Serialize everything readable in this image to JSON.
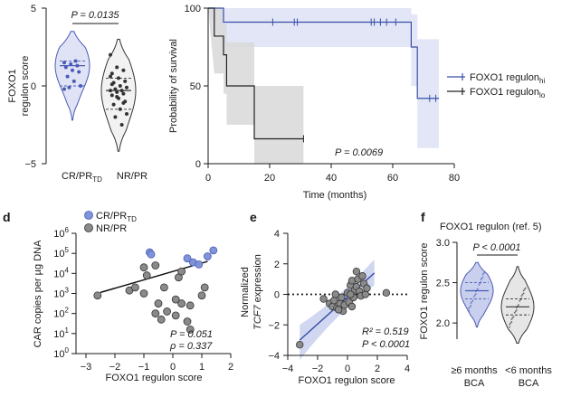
{
  "chart_data": [
    {
      "id": "violin_top",
      "type": "violin",
      "ylabel_lines": [
        "FOXO1",
        "regulon score"
      ],
      "ylim": [
        -5,
        5
      ],
      "yticks": [
        5,
        0,
        -5
      ],
      "categories": [
        "CR/PR",
        "NR/PR"
      ],
      "cat_subscripts": [
        "TD",
        ""
      ],
      "pvalue": "P = 0.0135",
      "colors": [
        "#4a5bb5",
        "#333333"
      ],
      "groups": [
        {
          "name": "CR/PR",
          "median": 1.3,
          "q1": 0.0,
          "q3": 1.6,
          "min": -2.2,
          "max": 3.5,
          "points": [
            1.5,
            1.4,
            1.3,
            1.2,
            1.0,
            0.9,
            0.6,
            0.3,
            0.0,
            -0.1,
            1.6,
            -0.2
          ]
        },
        {
          "name": "NR/PR",
          "median": -0.3,
          "q1": -1.5,
          "q3": 0.5,
          "min": -4.2,
          "max": 3.0,
          "points": [
            2.0,
            1.2,
            1.0,
            0.8,
            0.5,
            0.3,
            0.2,
            0.0,
            -0.1,
            -0.2,
            -0.3,
            -0.3,
            -0.4,
            -0.5,
            -0.6,
            -0.8,
            -1.0,
            -1.2,
            -1.5,
            -1.8,
            -2.0,
            -2.5,
            0.6,
            -0.7,
            -1.1,
            0.1
          ]
        }
      ]
    },
    {
      "id": "survival",
      "type": "line",
      "ylabel": "Probability of survival",
      "xlabel": "Time (months)",
      "xlim": [
        0,
        80
      ],
      "ylim": [
        0,
        100
      ],
      "xticks": [
        0,
        20,
        40,
        60,
        80
      ],
      "yticks": [
        0,
        50,
        100
      ],
      "pvalue": "P = 0.0069",
      "legend_position": "right",
      "series": [
        {
          "name_main": "FOXO1 regulon",
          "name_sub": "hi",
          "color": "#3a4fa8",
          "band_color": "#dfe3f5",
          "steps": [
            [
              0,
              100
            ],
            [
              5,
              100
            ],
            [
              5,
              91
            ],
            [
              66,
              91
            ],
            [
              66,
              75
            ],
            [
              68,
              75
            ],
            [
              68,
              42
            ],
            [
              75,
              42
            ]
          ],
          "band_lower": [
            [
              0,
              100
            ],
            [
              5,
              75
            ],
            [
              66,
              75
            ],
            [
              66,
              50
            ],
            [
              68,
              50
            ],
            [
              68,
              10
            ],
            [
              75,
              10
            ]
          ],
          "band_upper": [
            [
              0,
              100
            ],
            [
              5,
              100
            ],
            [
              66,
              100
            ],
            [
              66,
              96
            ],
            [
              68,
              96
            ],
            [
              68,
              80
            ],
            [
              75,
              80
            ]
          ],
          "censors": [
            [
              21,
              91
            ],
            [
              28,
              91
            ],
            [
              29,
              91
            ],
            [
              53,
              91
            ],
            [
              54,
              91
            ],
            [
              56,
              91
            ],
            [
              58,
              91
            ],
            [
              61,
              91
            ],
            [
              72,
              42
            ],
            [
              74,
              42
            ]
          ]
        },
        {
          "name_main": "FOXO1 regulon",
          "name_sub": "lo",
          "color": "#222222",
          "band_color": "#d8d8d8",
          "steps": [
            [
              0,
              100
            ],
            [
              2,
              100
            ],
            [
              2,
              82
            ],
            [
              5,
              82
            ],
            [
              5,
              70
            ],
            [
              6,
              70
            ],
            [
              6,
              50
            ],
            [
              15,
              50
            ],
            [
              15,
              16
            ],
            [
              31,
              16
            ]
          ],
          "band_lower": [
            [
              0,
              100
            ],
            [
              2,
              58
            ],
            [
              5,
              58
            ],
            [
              5,
              45
            ],
            [
              6,
              45
            ],
            [
              6,
              25
            ],
            [
              15,
              25
            ],
            [
              15,
              0
            ],
            [
              31,
              0
            ]
          ],
          "band_upper": [
            [
              0,
              100
            ],
            [
              2,
              100
            ],
            [
              5,
              100
            ],
            [
              5,
              90
            ],
            [
              6,
              90
            ],
            [
              6,
              78
            ],
            [
              15,
              78
            ],
            [
              15,
              50
            ],
            [
              31,
              50
            ]
          ],
          "censors": [
            [
              31,
              16
            ]
          ]
        }
      ]
    },
    {
      "id": "d",
      "type": "scatter",
      "panel_letter": "d",
      "ylabel": "CAR copies per µg DNA",
      "xlabel": "FOXO1 regulon score",
      "xlim": [
        -3,
        2
      ],
      "ylim_log10": [
        0,
        6
      ],
      "xticks": [
        -3,
        -2,
        -1,
        0,
        1,
        2
      ],
      "ytick_exps": [
        0,
        1,
        2,
        3,
        4,
        5,
        6
      ],
      "stats": [
        "P = 0.051",
        "ρ = 0.337"
      ],
      "legend": [
        {
          "label": "CR/PR",
          "sub": "TD",
          "color": "#7f94d8"
        },
        {
          "label": "NR/PR",
          "sub": "",
          "color": "#8a8a8a"
        }
      ],
      "fit": {
        "x": [
          -2.5,
          1.2
        ],
        "log10y": [
          3.05,
          4.6
        ]
      },
      "groups": [
        {
          "name": "CR/PR",
          "color": "#7f94d8",
          "points": [
            [
              1.4,
              5.15
            ],
            [
              1.2,
              4.85
            ],
            [
              0.7,
              4.55
            ],
            [
              0.9,
              4.45
            ],
            [
              -0.8,
              5.05
            ],
            [
              -0.75,
              4.95
            ],
            [
              0.5,
              4.75
            ]
          ]
        },
        {
          "name": "NR/PR",
          "color": "#8a8a8a",
          "points": [
            [
              -2.6,
              2.9
            ],
            [
              -1.5,
              3.15
            ],
            [
              -1.3,
              3.3
            ],
            [
              -1.0,
              3.0
            ],
            [
              -1.0,
              4.3
            ],
            [
              -0.6,
              4.4
            ],
            [
              -0.3,
              3.3
            ],
            [
              0.1,
              2.7
            ],
            [
              0.2,
              3.8
            ],
            [
              -0.5,
              2.5
            ],
            [
              0.3,
              2.5
            ],
            [
              0.6,
              2.4
            ],
            [
              0.5,
              1.6
            ],
            [
              0.6,
              1.2
            ],
            [
              0.1,
              1.9
            ],
            [
              -0.6,
              2.0
            ],
            [
              -0.4,
              1.7
            ],
            [
              -0.2,
              2.1
            ],
            [
              -0.9,
              3.9
            ],
            [
              1.0,
              2.9
            ],
            [
              1.1,
              3.3
            ],
            [
              0.3,
              4.1
            ]
          ]
        }
      ]
    },
    {
      "id": "e",
      "type": "scatter",
      "panel_letter": "e",
      "ylabel_lines": [
        "Normalized",
        "TCF7 expression"
      ],
      "ylabel_italic_word": "TCF7",
      "xlabel": "FOXO1 regulon score",
      "xlim": [
        -4,
        4
      ],
      "ylim": [
        -4,
        4
      ],
      "xticks": [
        -4,
        -2,
        0,
        2,
        4
      ],
      "yticks": [
        -4,
        -2,
        0,
        2,
        4
      ],
      "stats": [
        "R² = 0.519",
        "P < 0.0001"
      ],
      "fit": {
        "x": [
          -3.2,
          1.8
        ],
        "y": [
          -3.0,
          1.4
        ]
      },
      "points": [
        [
          -3.2,
          -3.3
        ],
        [
          -1.6,
          -0.3
        ],
        [
          -1.2,
          -0.6
        ],
        [
          -1.0,
          -0.8
        ],
        [
          -0.9,
          -0.4
        ],
        [
          -0.7,
          -0.9
        ],
        [
          -0.5,
          -0.6
        ],
        [
          -0.4,
          -0.2
        ],
        [
          -0.3,
          -1.1
        ],
        [
          -0.2,
          -0.7
        ],
        [
          0.0,
          0.1
        ],
        [
          0.1,
          -0.5
        ],
        [
          0.2,
          0.6
        ],
        [
          0.3,
          0.9
        ],
        [
          0.4,
          -0.2
        ],
        [
          0.5,
          0.3
        ],
        [
          0.6,
          0.5
        ],
        [
          0.7,
          1.0
        ],
        [
          0.8,
          0.2
        ],
        [
          0.9,
          -0.1
        ],
        [
          1.0,
          1.2
        ],
        [
          1.1,
          0.7
        ],
        [
          1.2,
          0.0
        ],
        [
          1.3,
          0.4
        ],
        [
          -0.8,
          0.0
        ],
        [
          0.3,
          -0.8
        ],
        [
          0.6,
          1.5
        ],
        [
          2.6,
          0.1
        ],
        [
          -0.6,
          -1.0
        ],
        [
          0.2,
          0.0
        ]
      ]
    },
    {
      "id": "f",
      "type": "violin",
      "panel_letter": "f",
      "title": "FOXO1 regulon (ref. 5)",
      "ylabel": "FOXO1 regulon score",
      "ylim": [
        1.8,
        3.0
      ],
      "yticks": [
        2.0,
        2.5,
        3.0
      ],
      "ytick_labels": [
        "2.0",
        "2.5",
        "3.0"
      ],
      "categories_line1": [
        "≥6 months",
        "<6 months"
      ],
      "categories_line2": [
        "BCA",
        "BCA"
      ],
      "pvalue": "P < 0.0001",
      "colors": [
        "#4a5bb5",
        "#333333"
      ],
      "groups": [
        {
          "name": "≥6 months BCA",
          "median": 2.4,
          "q1": 2.3,
          "q3": 2.5,
          "min": 1.95,
          "max": 2.75
        },
        {
          "name": "<6 months BCA",
          "median": 2.2,
          "q1": 2.1,
          "q3": 2.3,
          "min": 1.75,
          "max": 2.7
        }
      ]
    }
  ]
}
